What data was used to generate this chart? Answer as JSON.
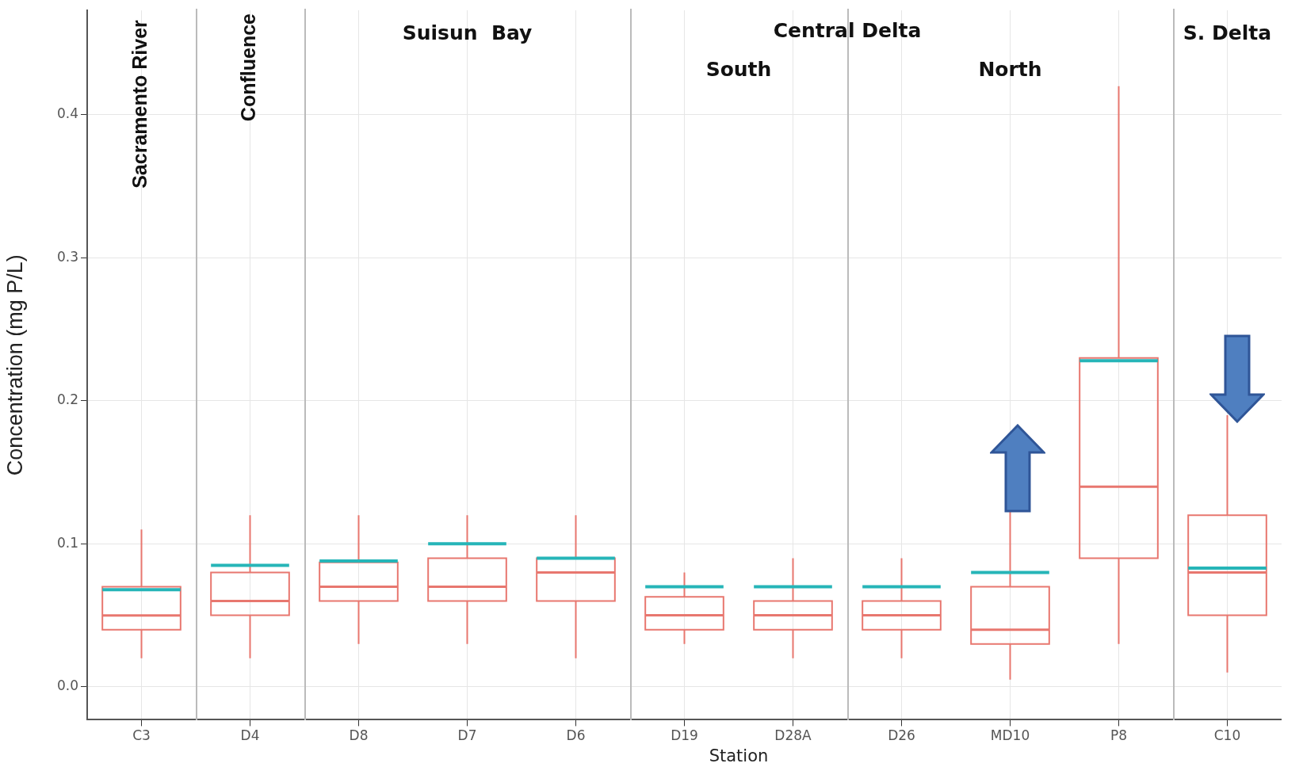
{
  "chart_data": [
    {
      "type": "box",
      "title": "Sacramento River",
      "ylabel": "Concentration (mg P/L)",
      "categories": [
        "C3"
      ],
      "series": [
        {
          "type": "box",
          "color": "#e8776f",
          "boxes": [
            {
              "low": 0.02,
              "q1": 0.04,
              "median": 0.05,
              "q3": 0.07,
              "high": 0.11,
              "mean": 0.068
            }
          ]
        }
      ],
      "ylim": [
        -0.023,
        0.473
      ],
      "yticks": [
        {
          "value": 0,
          "label": "0.0"
        },
        0.1,
        0.2,
        0.3,
        0.4
      ],
      "grid": true,
      "legend": false
    },
    {
      "type": "box",
      "title": "Confluence",
      "categories": [
        "D4"
      ],
      "series": [
        {
          "type": "box",
          "color": "#e8776f",
          "boxes": [
            {
              "low": 0.02,
              "q1": 0.05,
              "median": 0.06,
              "q3": 0.08,
              "high": 0.12,
              "mean": 0.085
            }
          ]
        }
      ],
      "ylim": [
        -0.023,
        0.473
      ],
      "yticks": [
        0,
        0.1,
        0.2,
        0.3,
        0.4
      ],
      "grid": true,
      "legend": false,
      "tick_labels": "x"
    },
    {
      "type": "box",
      "title": "Suisun  Bay",
      "categories": [
        "D8",
        "D7",
        "D6"
      ],
      "series": [
        {
          "type": "box",
          "color": "#e8776f",
          "boxes": [
            {
              "low": 0.03,
              "q1": 0.06,
              "median": 0.07,
              "q3": 0.087,
              "high": 0.12,
              "mean": 0.088
            },
            {
              "low": 0.03,
              "q1": 0.06,
              "median": 0.07,
              "q3": 0.09,
              "high": 0.12,
              "mean": 0.1
            },
            {
              "low": 0.02,
              "q1": 0.06,
              "median": 0.08,
              "q3": 0.09,
              "high": 0.12,
              "mean": 0.09
            }
          ]
        }
      ],
      "ylim": [
        -0.023,
        0.473
      ],
      "yticks": [
        0,
        0.1,
        0.2,
        0.3,
        0.4
      ],
      "grid": true,
      "legend": false,
      "tick_labels": "x"
    },
    {
      "type": "box",
      "title": "South",
      "xlabel": "Station",
      "annotations": [
        "Central Delta"
      ],
      "categories": [
        "D19",
        "D28A"
      ],
      "series": [
        {
          "type": "box",
          "color": "#e8776f",
          "boxes": [
            {
              "low": 0.03,
              "q1": 0.04,
              "median": 0.05,
              "q3": 0.063,
              "high": 0.08,
              "mean": 0.07
            },
            {
              "low": 0.02,
              "q1": 0.04,
              "median": 0.05,
              "q3": 0.06,
              "high": 0.09,
              "mean": 0.07
            }
          ]
        }
      ],
      "ylim": [
        -0.023,
        0.473
      ],
      "yticks": [
        0,
        0.1,
        0.2,
        0.3,
        0.4
      ],
      "grid": true,
      "legend": false,
      "tick_labels": "x"
    },
    {
      "type": "box",
      "title": "North",
      "categories": [
        "D26",
        "MD10",
        "P8"
      ],
      "series": [
        {
          "type": "box",
          "color": "#e8776f",
          "boxes": [
            {
              "low": 0.02,
              "q1": 0.04,
              "median": 0.05,
              "q3": 0.06,
              "high": 0.09,
              "mean": 0.07
            },
            {
              "low": 0.005,
              "q1": 0.03,
              "median": 0.04,
              "q3": 0.07,
              "high": 0.127,
              "mean": 0.08
            },
            {
              "low": 0.03,
              "q1": 0.09,
              "median": 0.14,
              "q3": 0.23,
              "high": 0.42,
              "mean": 0.228
            }
          ]
        }
      ],
      "ylim": [
        -0.023,
        0.473
      ],
      "yticks": [
        0,
        0.1,
        0.2,
        0.3,
        0.4
      ],
      "grid": true,
      "legend": false,
      "tick_labels": "x"
    },
    {
      "type": "box",
      "title": "S. Delta",
      "categories": [
        "C10"
      ],
      "series": [
        {
          "type": "box",
          "color": "#e8776f",
          "boxes": [
            {
              "low": 0.01,
              "q1": 0.05,
              "median": 0.08,
              "q3": 0.12,
              "high": 0.19,
              "mean": 0.083
            }
          ]
        }
      ],
      "ylim": [
        -0.023,
        0.473
      ],
      "yticks": [
        0,
        0.1,
        0.2,
        0.3,
        0.4
      ],
      "grid": true,
      "legend": false,
      "tick_labels": "x"
    }
  ]
}
